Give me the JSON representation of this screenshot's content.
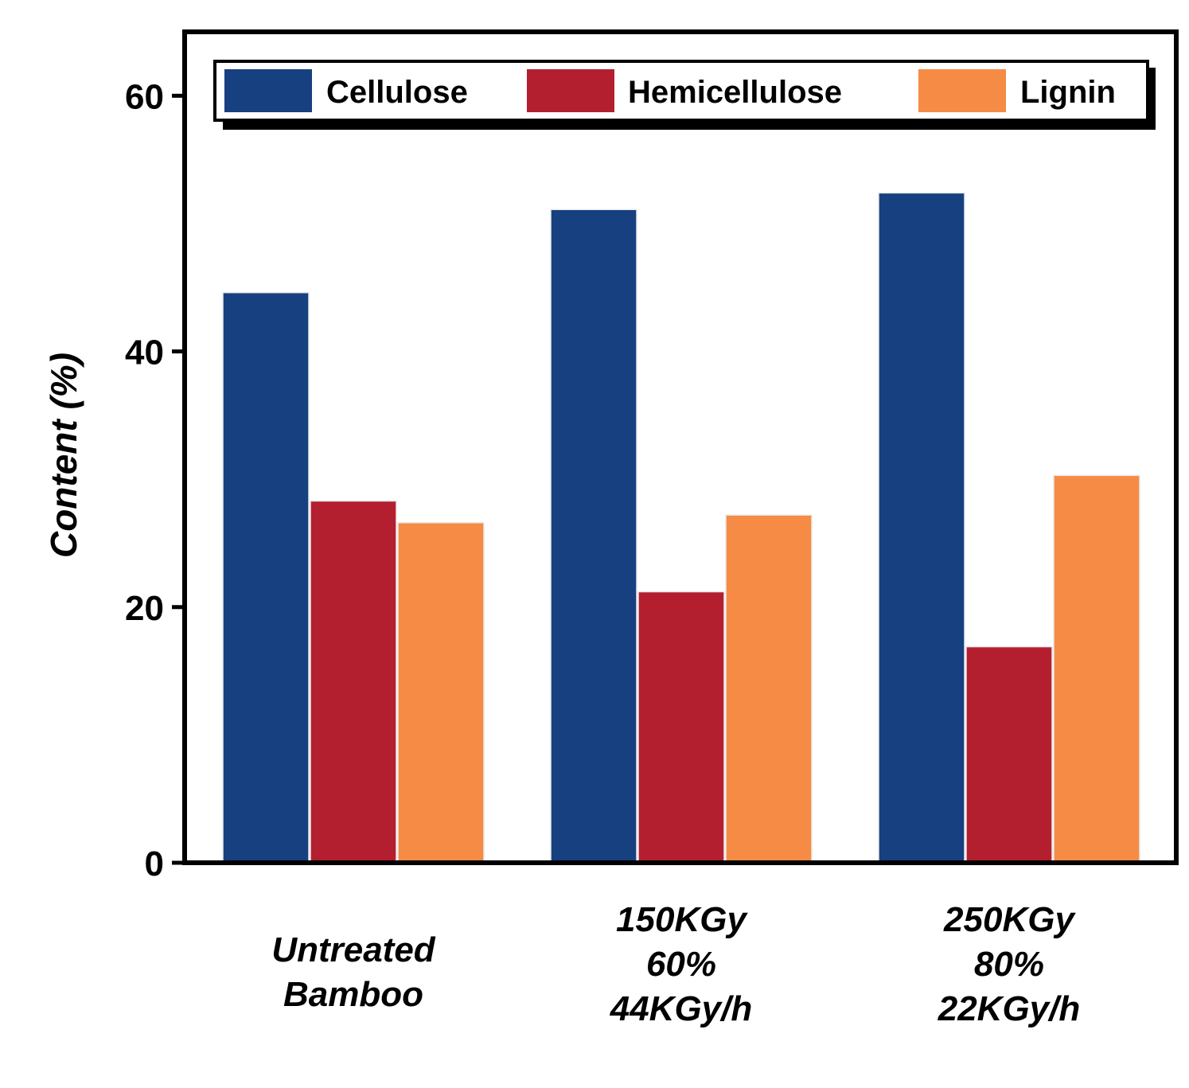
{
  "chart_data": {
    "type": "bar",
    "title": "",
    "xlabel": "",
    "ylabel": "Content (%)",
    "ylim": [
      0,
      65
    ],
    "yticks": [
      0,
      20,
      40,
      60
    ],
    "ytick_labels": [
      "0",
      "20",
      "40",
      "60"
    ],
    "grid": false,
    "legend_position": "top",
    "categories": [
      [
        "Untreated",
        "Bamboo"
      ],
      [
        "150KGy",
        "60%",
        "44KGy/h"
      ],
      [
        "250KGy",
        "80%",
        "22KGy/h"
      ]
    ],
    "series": [
      {
        "name": "Cellulose",
        "color": "#16407f",
        "values": [
          44.6,
          51.1,
          52.4
        ]
      },
      {
        "name": "Hemicellulose",
        "color": "#b41f30",
        "values": [
          28.3,
          21.2,
          16.9
        ]
      },
      {
        "name": "Lignin",
        "color": "#f58b45",
        "values": [
          26.6,
          27.2,
          30.3
        ]
      }
    ]
  }
}
